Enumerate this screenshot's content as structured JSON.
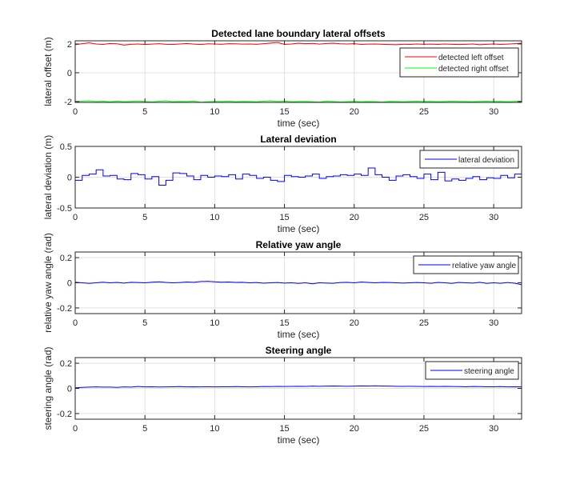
{
  "figure_background": "#f0f0f0",
  "chart_data": [
    {
      "type": "line",
      "title": "Detected lane boundary lateral offsets",
      "xlabel": "time (sec)",
      "ylabel": "lateral offset (m)",
      "xlim": [
        0,
        32
      ],
      "ylim": [
        -2.06,
        2.22
      ],
      "xticks": [
        0,
        5,
        10,
        15,
        20,
        25,
        30
      ],
      "yticks": [
        -2,
        0,
        2
      ],
      "grid": true,
      "legend": "top-right",
      "stairs": false,
      "x": [
        0,
        0.5,
        1,
        1.5,
        2,
        2.5,
        3,
        3.5,
        4,
        4.5,
        5,
        5.5,
        6,
        6.5,
        7,
        7.5,
        8,
        8.5,
        9,
        9.5,
        10,
        10.5,
        11,
        11.5,
        12,
        12.5,
        13,
        13.5,
        14,
        14.5,
        15,
        15.5,
        16,
        16.5,
        17,
        17.5,
        18,
        18.5,
        19,
        19.5,
        20,
        20.5,
        21,
        21.5,
        22,
        22.5,
        23,
        23.5,
        24,
        24.5,
        25,
        25.5,
        26,
        26.5,
        27,
        27.5,
        28,
        28.5,
        29,
        29.5,
        30,
        30.5,
        31,
        31.5,
        32
      ],
      "series": [
        {
          "name": "detected left offset",
          "color": "#ff0000",
          "values": [
            1.95,
            2.02,
            2.08,
            2.0,
            1.97,
            2.03,
            2.01,
            1.92,
            1.98,
            2.0,
            1.96,
            1.99,
            2.02,
            1.98,
            1.97,
            2.0,
            2.03,
            1.99,
            1.96,
            2.01,
            2.0,
            1.98,
            2.02,
            2.01,
            1.99,
            2.0,
            1.98,
            2.02,
            2.06,
            2.1,
            1.97,
            2.0,
            2.05,
            2.02,
            2.04,
            1.99,
            2.03,
            2.05,
            2.01,
            2.0,
            2.02,
            1.97,
            1.99,
            2.0,
            1.98,
            1.96,
            1.95,
            1.98,
            1.97,
            2.0,
            1.98,
            1.99,
            1.97,
            2.0,
            1.98,
            1.96,
            1.98,
            2.0,
            1.95,
            1.98,
            2.0,
            1.97,
            1.99,
            2.02,
            2.05
          ]
        },
        {
          "name": "detected right offset",
          "color": "#00ff00",
          "values": [
            -2.02,
            -1.97,
            -1.95,
            -2.0,
            -1.98,
            -2.02,
            -1.97,
            -2.01,
            -1.99,
            -1.96,
            -2.0,
            -2.03,
            -1.98,
            -1.95,
            -2.01,
            -1.99,
            -2.0,
            -1.97,
            -2.05,
            -2.02,
            -1.99,
            -2.0,
            -1.98,
            -2.01,
            -1.99,
            -2.0,
            -2.02,
            -1.98,
            -1.95,
            -2.0,
            -1.97,
            -2.01,
            -2.0,
            -1.99,
            -2.02,
            -2.04,
            -1.98,
            -2.0,
            -2.03,
            -2.01,
            -1.99,
            -2.02,
            -2.0,
            -2.01,
            -2.04,
            -1.99,
            -2.0,
            -2.02,
            -1.99,
            -1.98,
            -2.0,
            -1.99,
            -2.01,
            -2.0,
            -1.98,
            -1.99,
            -2.0,
            -2.01,
            -1.99,
            -1.98,
            -2.0,
            -1.99,
            -2.01,
            -1.99,
            -1.98
          ]
        }
      ]
    },
    {
      "type": "line",
      "title": "Lateral deviation",
      "xlabel": "time (sec)",
      "ylabel": "lateral deviation (m)",
      "xlim": [
        0,
        32
      ],
      "ylim": [
        -0.5,
        0.5
      ],
      "xticks": [
        0,
        5,
        10,
        15,
        20,
        25,
        30
      ],
      "yticks": [
        -0.5,
        0,
        0.5
      ],
      "grid": true,
      "legend": "top-right",
      "stairs": true,
      "x": [
        0,
        0.5,
        1,
        1.5,
        2,
        2.5,
        3,
        3.5,
        4,
        4.5,
        5,
        5.5,
        6,
        6.5,
        7,
        7.5,
        8,
        8.5,
        9,
        9.5,
        10,
        10.5,
        11,
        11.5,
        12,
        12.5,
        13,
        13.5,
        14,
        14.5,
        15,
        15.5,
        16,
        16.5,
        17,
        17.5,
        18,
        18.5,
        19,
        19.5,
        20,
        20.5,
        21,
        21.5,
        22,
        22.5,
        23,
        23.5,
        24,
        24.5,
        25,
        25.5,
        26,
        26.5,
        27,
        27.5,
        28,
        28.5,
        29,
        29.5,
        30,
        30.5,
        31,
        31.5,
        32
      ],
      "series": [
        {
          "name": "lateral deviation",
          "color": "#0000ff",
          "values": [
            -0.05,
            0.03,
            0.05,
            0.12,
            0.02,
            0.03,
            -0.03,
            -0.04,
            0.06,
            0.04,
            -0.03,
            0.01,
            -0.13,
            -0.05,
            0.07,
            0.06,
            0.02,
            -0.04,
            0.03,
            0.0,
            0.02,
            0.01,
            0.04,
            -0.03,
            0.05,
            0.03,
            -0.02,
            0.0,
            -0.05,
            -0.07,
            0.03,
            0.01,
            0.0,
            0.02,
            0.05,
            -0.02,
            0.01,
            0.02,
            0.04,
            0.03,
            0.05,
            0.03,
            0.15,
            0.04,
            0.0,
            -0.05,
            0.02,
            0.04,
            0.01,
            -0.02,
            0.05,
            -0.04,
            0.08,
            -0.06,
            -0.03,
            -0.05,
            -0.02,
            0.01,
            -0.04,
            -0.01,
            -0.02,
            0.03,
            -0.01,
            0.05,
            0.02
          ]
        }
      ]
    },
    {
      "type": "line",
      "title": "Relative yaw angle",
      "xlabel": "time (sec)",
      "ylabel": "relative yaw angle (rad)",
      "xlim": [
        0,
        32
      ],
      "ylim": [
        -0.245,
        0.245
      ],
      "xticks": [
        0,
        5,
        10,
        15,
        20,
        25,
        30
      ],
      "yticks": [
        -0.2,
        0,
        0.2
      ],
      "grid": true,
      "legend": "top-right",
      "stairs": false,
      "x": [
        0,
        0.5,
        1,
        1.5,
        2,
        2.5,
        3,
        3.5,
        4,
        4.5,
        5,
        5.5,
        6,
        6.5,
        7,
        7.5,
        8,
        8.5,
        9,
        9.5,
        10,
        10.5,
        11,
        11.5,
        12,
        12.5,
        13,
        13.5,
        14,
        14.5,
        15,
        15.5,
        16,
        16.5,
        17,
        17.5,
        18,
        18.5,
        19,
        19.5,
        20,
        20.5,
        21,
        21.5,
        22,
        22.5,
        23,
        23.5,
        24,
        24.5,
        25,
        25.5,
        26,
        26.5,
        27,
        27.5,
        28,
        28.5,
        29,
        29.5,
        30,
        30.5,
        31,
        31.5,
        32
      ],
      "series": [
        {
          "name": "relative yaw angle",
          "color": "#0000ff",
          "values": [
            0.005,
            0.0,
            -0.005,
            0.0,
            0.005,
            0.0,
            0.003,
            -0.002,
            0.004,
            0.002,
            0.0,
            0.005,
            0.008,
            0.003,
            0.0,
            0.002,
            0.006,
            0.004,
            0.01,
            0.012,
            0.008,
            0.005,
            0.006,
            0.003,
            0.004,
            0.0,
            0.002,
            -0.003,
            0.0,
            0.002,
            -0.002,
            0.0,
            -0.005,
            0.0,
            -0.008,
            0.0,
            -0.002,
            -0.004,
            0.002,
            0.004,
            0.0,
            0.006,
            0.003,
            0.0,
            0.003,
            0.002,
            0.0,
            -0.002,
            0.0,
            0.002,
            0.0,
            -0.004,
            0.003,
            0.0,
            -0.005,
            0.003,
            0.0,
            -0.002,
            0.004,
            -0.005,
            0.0,
            -0.004,
            0.002,
            -0.003,
            -0.015
          ]
        }
      ]
    },
    {
      "type": "line",
      "title": "Steering angle",
      "xlabel": "time (sec)",
      "ylabel": "steering angle (rad)",
      "xlim": [
        0,
        32
      ],
      "ylim": [
        -0.245,
        0.245
      ],
      "xticks": [
        0,
        5,
        10,
        15,
        20,
        25,
        30
      ],
      "yticks": [
        -0.2,
        0,
        0.2
      ],
      "grid": true,
      "legend": "top-right",
      "stairs": false,
      "x": [
        0,
        0.5,
        1,
        1.5,
        2,
        2.5,
        3,
        3.5,
        4,
        4.5,
        5,
        5.5,
        6,
        6.5,
        7,
        7.5,
        8,
        8.5,
        9,
        9.5,
        10,
        10.5,
        11,
        11.5,
        12,
        12.5,
        13,
        13.5,
        14,
        14.5,
        15,
        15.5,
        16,
        16.5,
        17,
        17.5,
        18,
        18.5,
        19,
        19.5,
        20,
        20.5,
        21,
        21.5,
        22,
        22.5,
        23,
        23.5,
        24,
        24.5,
        25,
        25.5,
        26,
        26.5,
        27,
        27.5,
        28,
        28.5,
        29,
        29.5,
        30,
        30.5,
        31,
        31.5,
        32
      ],
      "series": [
        {
          "name": "steering angle",
          "color": "#0000ff",
          "values": [
            0.005,
            0.008,
            0.01,
            0.012,
            0.01,
            0.01,
            0.008,
            0.012,
            0.01,
            0.015,
            0.012,
            0.013,
            0.011,
            0.012,
            0.013,
            0.014,
            0.012,
            0.013,
            0.012,
            0.013,
            0.012,
            0.013,
            0.013,
            0.014,
            0.013,
            0.012,
            0.013,
            0.015,
            0.014,
            0.016,
            0.015,
            0.016,
            0.017,
            0.016,
            0.018,
            0.017,
            0.018,
            0.019,
            0.018,
            0.017,
            0.018,
            0.02,
            0.019,
            0.021,
            0.019,
            0.018,
            0.017,
            0.016,
            0.017,
            0.016,
            0.015,
            0.016,
            0.015,
            0.016,
            0.015,
            0.014,
            0.013,
            0.015,
            0.014,
            0.013,
            0.013,
            0.014,
            0.012,
            0.013,
            0.012
          ]
        }
      ]
    }
  ]
}
